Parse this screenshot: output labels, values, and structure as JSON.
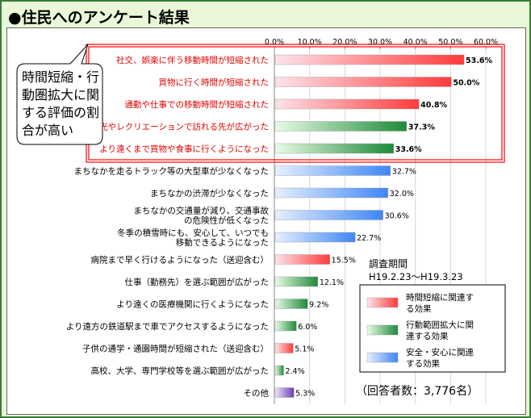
{
  "title": "●住民へのアンケート結果",
  "callout": {
    "lines": [
      "時間短縮・行",
      "動圏拡大に関",
      "する評価の割",
      "合が高い"
    ]
  },
  "survey_period": {
    "label": "調査期間",
    "range": "H19.2.23～H19.3.23"
  },
  "respondents": "（回答者数：3,776名）",
  "legend": [
    {
      "label_lines": [
        "時間短縮に関連す",
        "る効果"
      ],
      "color": "#ff3b3b",
      "fade": "#fde3ea"
    },
    {
      "label_lines": [
        "行動範囲拡大に関",
        "連する効果"
      ],
      "color": "#1e8a3a",
      "fade": "#e8fbe6"
    },
    {
      "label_lines": [
        "安全・安心に関連",
        "する効果"
      ],
      "color": "#3f86f5",
      "fade": "#e6f0ff"
    }
  ],
  "chart_data": {
    "type": "bar",
    "orientation": "horizontal",
    "xlim": [
      0,
      60
    ],
    "ticks": [
      "0.0%",
      "10.0%",
      "20.0%",
      "30.0%",
      "40.0%",
      "50.0%",
      "60.0%"
    ],
    "categories": [
      {
        "label": "社交、娯楽に伴う移動時間が短縮された",
        "value": 53.6,
        "display": "53.6%",
        "group": 0,
        "highlight": true
      },
      {
        "label": "買物に行く時間が短縮された",
        "value": 50.0,
        "display": "50.0%",
        "group": 0,
        "highlight": true
      },
      {
        "label": "通勤や仕事での移動時間が短縮された",
        "value": 40.8,
        "display": "40.8%",
        "group": 0,
        "highlight": true
      },
      {
        "label": "観光やレクリエーションで訪れる先が広がった",
        "value": 37.3,
        "display": "37.3%",
        "group": 1,
        "highlight": true
      },
      {
        "label": "より遠くまで買物や食事に行くようになった",
        "value": 33.6,
        "display": "33.6%",
        "group": 1,
        "highlight": true
      },
      {
        "label": "まちなかを走るトラック等の大型車が少なくなった",
        "value": 32.7,
        "display": "32.7%",
        "group": 2,
        "highlight": false
      },
      {
        "label": "まちなかの渋滞が少なくなった",
        "value": 32.0,
        "display": "32.0%",
        "group": 2,
        "highlight": false
      },
      {
        "label": "まちなかの交通量が減り、交通事故の危険性が低くなった",
        "label_lines": [
          "まちなかの交通量が減り、交通事故",
          "の危険性が低くなった"
        ],
        "value": 30.6,
        "display": "30.6%",
        "group": 2,
        "highlight": false
      },
      {
        "label": "冬季の積雪時にも、安心して、いつでも移動できるようになった",
        "label_lines": [
          "冬季の積雪時にも、安心して、いつでも",
          "移動できるようになった"
        ],
        "value": 22.7,
        "display": "22.7%",
        "group": 2,
        "highlight": false
      },
      {
        "label": "病院まで早く行けるようになった（送迎含む）",
        "value": 15.5,
        "display": "15.5%",
        "group": 0,
        "highlight": false
      },
      {
        "label": "仕事（勤務先）を選ぶ範囲が広がった",
        "value": 12.1,
        "display": "12.1%",
        "group": 1,
        "highlight": false
      },
      {
        "label": "より遠くの医療機関に行くようになった",
        "value": 9.2,
        "display": "9.2%",
        "group": 1,
        "highlight": false
      },
      {
        "label": "より遠方の鉄道駅まで車でアクセスするようになった",
        "value": 6.0,
        "display": "6.0%",
        "group": 1,
        "highlight": false
      },
      {
        "label": "子供の通学・通園時間が短縮された（送迎含む）",
        "value": 5.1,
        "display": "5.1%",
        "group": 0,
        "highlight": false
      },
      {
        "label": "高校、大学、専門学校等を選ぶ範囲が広がった",
        "value": 2.4,
        "display": "2.4%",
        "group": 1,
        "highlight": false
      },
      {
        "label": "その他",
        "value": 5.3,
        "display": "5.3%",
        "group": 3,
        "highlight": false
      }
    ],
    "other_color": "#6a3fb0",
    "other_fade": "#efe6ff",
    "highlight_color": "#ff0000",
    "label_colors": {
      "highlight": "#e00000",
      "normal": "#000000"
    }
  }
}
